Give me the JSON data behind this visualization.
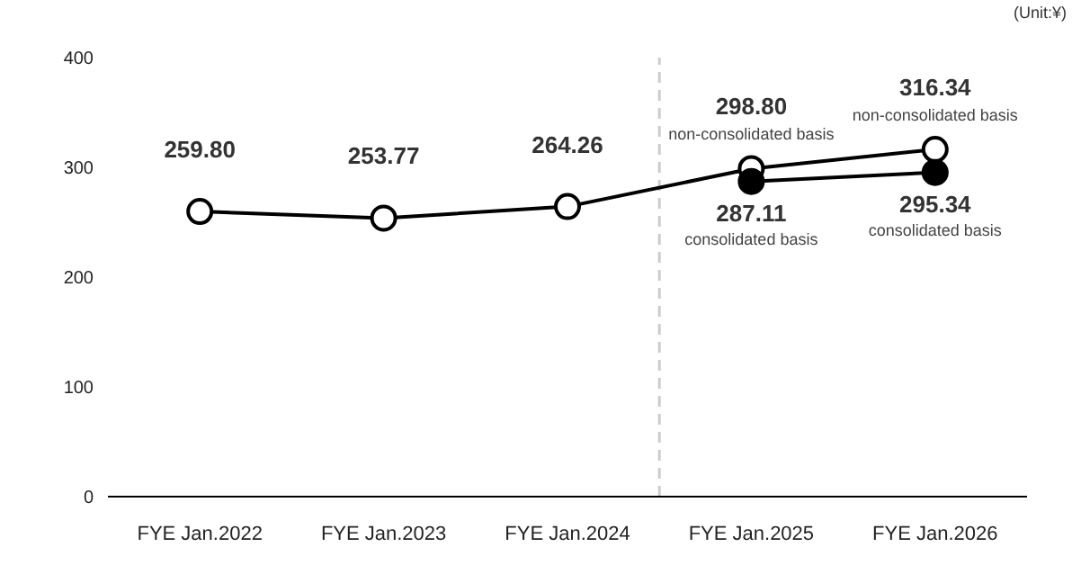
{
  "chart_data": {
    "type": "line",
    "categories": [
      "FYE Jan.2022",
      "FYE Jan.2023",
      "FYE Jan.2024",
      "FYE Jan.2025",
      "FYE Jan.2026"
    ],
    "series": [
      {
        "color": "#000000",
        "values": [
          259.8,
          253.77,
          264.26,
          298.8,
          316.34
        ],
        "value_labels": [
          "259.80",
          "253.77",
          "264.26",
          "298.80",
          "316.34"
        ]
      },
      {
        "color": "#000000",
        "values": [
          null,
          null,
          null,
          287.11,
          295.34
        ],
        "value_labels": [
          null,
          null,
          null,
          "287.11",
          "295.34"
        ]
      }
    ],
    "ylim": [
      0,
      400
    ],
    "yticks": [
      0,
      100,
      200,
      300,
      400
    ],
    "grid": false,
    "legend": false,
    "marker": "circle",
    "line_style": "solid",
    "annotations": [
      "(Unit:¥)",
      "consolidated basis",
      "consolidated basis",
      {
        "text": "non-consolidated basis",
        "x": "FYE Jan.2025",
        "y": 298.8
      },
      {
        "text": "non-consolidated basis",
        "x": "FYE Jan.2026",
        "y": 316.34
      }
    ]
  }
}
